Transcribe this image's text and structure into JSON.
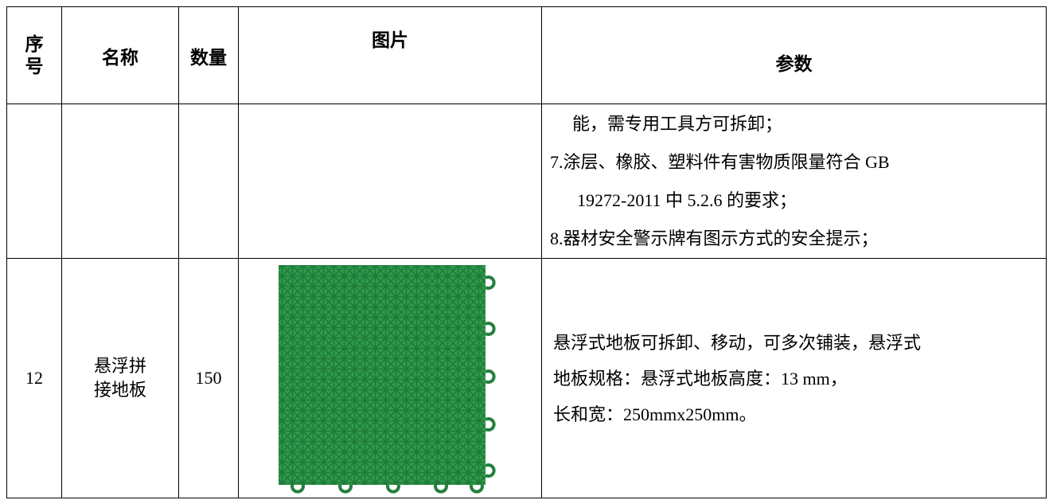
{
  "table": {
    "headers": [
      "序号",
      "名称",
      "数量",
      "图片",
      "参数"
    ],
    "rows": [
      {
        "params": [
          "能，需专用工具方可拆卸；",
          "7.涂层、橡胶、塑料件有害物质限量符合 GB",
          "19272-2011 中 5.2.6 的要求；",
          "8.器材安全警示牌有图示方式的安全提示；"
        ]
      },
      {
        "no": 12,
        "name": "悬浮拼接地板",
        "qty": 150,
        "params": [
          "悬浮式地板可拆卸、移动，可多次铺装，悬浮式",
          "地板规格：悬浮式地板高度：13 mm，",
          "长和宽：250mmx250mm。"
        ]
      }
    ]
  }
}
